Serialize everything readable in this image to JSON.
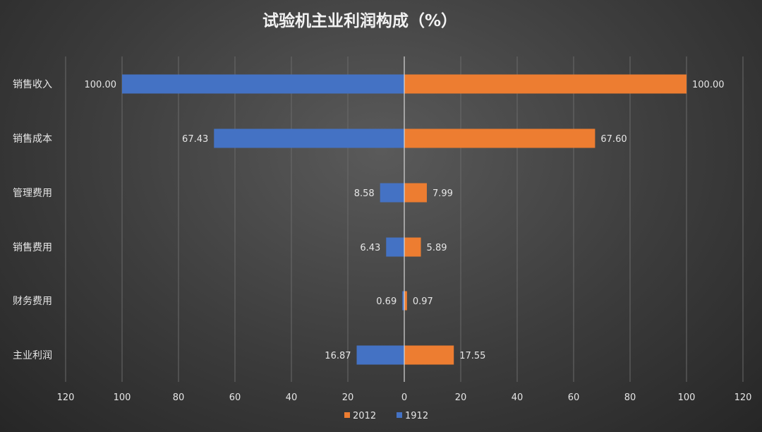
{
  "chart_data": {
    "type": "bar",
    "orientation": "horizontal-butterfly",
    "title": "试验机主业利润构成（%）",
    "categories": [
      "销售收入",
      "销售成本",
      "管理费用",
      "销售费用",
      "财务费用",
      "主业利润"
    ],
    "series": [
      {
        "name": "2012",
        "color": "#ed7d31",
        "direction": "right",
        "values": [
          100.0,
          67.6,
          7.99,
          5.89,
          0.97,
          17.55
        ]
      },
      {
        "name": "1912",
        "color": "#4472c4",
        "direction": "left",
        "values": [
          100.0,
          67.43,
          8.58,
          6.43,
          0.69,
          16.87
        ]
      }
    ],
    "xlim": [
      -120,
      120
    ],
    "xticks": [
      120,
      100,
      80,
      60,
      40,
      20,
      0,
      20,
      40,
      60,
      80,
      100,
      120
    ],
    "grid": true,
    "legend_position": "bottom-center"
  }
}
